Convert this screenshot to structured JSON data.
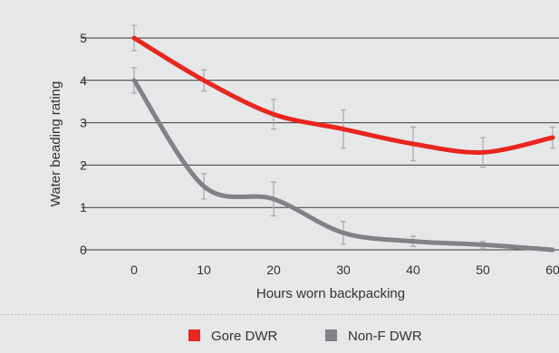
{
  "chart_data": {
    "type": "line",
    "xlabel": "Hours worn backpacking",
    "ylabel": "Water beading rating",
    "x": [
      0,
      10,
      20,
      30,
      40,
      50,
      60
    ],
    "xlim": [
      -5,
      60
    ],
    "ylim": [
      0,
      5
    ],
    "x_ticks": [
      0,
      10,
      20,
      30,
      40,
      50,
      60
    ],
    "y_ticks": [
      0,
      1,
      2,
      3,
      4,
      5
    ],
    "grid": "horizontal",
    "legend_position": "bottom",
    "error_bars": true,
    "series": [
      {
        "name": "Gore DWR",
        "color": "#e8261f",
        "values": [
          5.0,
          4.0,
          3.2,
          2.85,
          2.5,
          2.3,
          2.65
        ],
        "error": [
          0.3,
          0.25,
          0.35,
          0.45,
          0.4,
          0.35,
          0.25
        ]
      },
      {
        "name": "Non-F DWR",
        "color": "#818285",
        "values": [
          4.0,
          1.5,
          1.2,
          0.4,
          0.2,
          0.12,
          0.0
        ],
        "error": [
          0.3,
          0.3,
          0.4,
          0.27,
          0.12,
          0.08,
          0.0
        ]
      }
    ]
  }
}
